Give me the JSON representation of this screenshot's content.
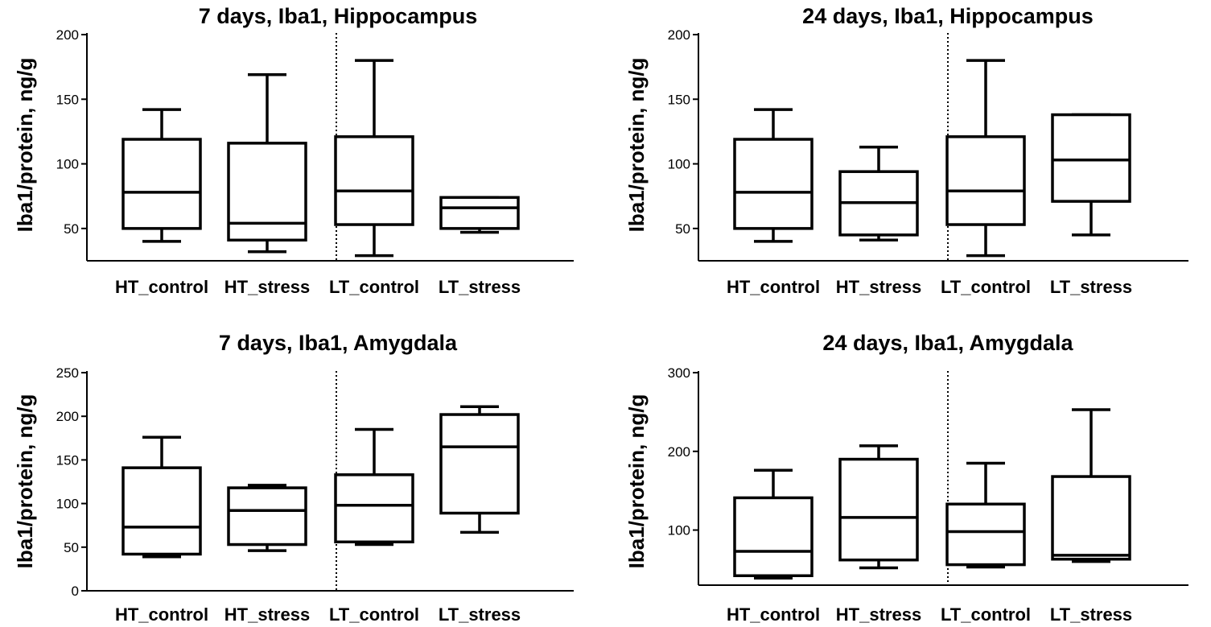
{
  "chart_data": [
    {
      "type": "box",
      "title": "7 days, Iba1, Hippocampus",
      "xlabel": "",
      "ylabel": "Iba1/protein, ng/g",
      "ylim": [
        25,
        200
      ],
      "yticks": [
        50,
        100,
        150,
        200
      ],
      "categories": [
        "HT_control",
        "HT_stress",
        "LT_control",
        "LT_stress"
      ],
      "divider_after": 2,
      "boxes": [
        {
          "min": 40,
          "q1": 50,
          "median": 78,
          "q3": 119,
          "max": 142
        },
        {
          "min": 32,
          "q1": 41,
          "median": 54,
          "q3": 116,
          "max": 169
        },
        {
          "min": 29,
          "q1": 53,
          "median": 79,
          "q3": 121,
          "max": 180
        },
        {
          "min": 47,
          "q1": 50,
          "median": 66,
          "q3": 74,
          "max": 74
        }
      ]
    },
    {
      "type": "box",
      "title": "24 days, Iba1, Hippocampus",
      "xlabel": "",
      "ylabel": "Iba1/protein, ng/g",
      "ylim": [
        25,
        200
      ],
      "yticks": [
        50,
        100,
        150,
        200
      ],
      "categories": [
        "HT_control",
        "HT_stress",
        "LT_control",
        "LT_stress"
      ],
      "divider_after": 2,
      "boxes": [
        {
          "min": 40,
          "q1": 50,
          "median": 78,
          "q3": 119,
          "max": 142
        },
        {
          "min": 41,
          "q1": 45,
          "median": 70,
          "q3": 94,
          "max": 113
        },
        {
          "min": 29,
          "q1": 53,
          "median": 79,
          "q3": 121,
          "max": 180
        },
        {
          "min": 45,
          "q1": 71,
          "median": 103,
          "q3": 138,
          "max": 138
        }
      ]
    },
    {
      "type": "box",
      "title": "7 days, Iba1, Amygdala",
      "xlabel": "",
      "ylabel": "Iba1/protein, ng/g",
      "ylim": [
        0,
        250
      ],
      "yticks": [
        0,
        50,
        100,
        150,
        200,
        250
      ],
      "categories": [
        "HT_control",
        "HT_stress",
        "LT_control",
        "LT_stress"
      ],
      "divider_after": 2,
      "boxes": [
        {
          "min": 39,
          "q1": 42,
          "median": 73,
          "q3": 141,
          "max": 176
        },
        {
          "min": 46,
          "q1": 53,
          "median": 92,
          "q3": 118,
          "max": 121
        },
        {
          "min": 53,
          "q1": 56,
          "median": 98,
          "q3": 133,
          "max": 185
        },
        {
          "min": 67,
          "q1": 89,
          "median": 165,
          "q3": 202,
          "max": 211
        }
      ]
    },
    {
      "type": "box",
      "title": "24 days, Iba1, Amygdala",
      "xlabel": "",
      "ylabel": "Iba1/protein, ng/g",
      "ylim": [
        30,
        300
      ],
      "yticks": [
        100,
        200,
        300
      ],
      "categories": [
        "HT_control",
        "HT_stress",
        "LT_control",
        "LT_stress"
      ],
      "divider_after": 2,
      "boxes": [
        {
          "min": 39,
          "q1": 42,
          "median": 73,
          "q3": 141,
          "max": 176
        },
        {
          "min": 52,
          "q1": 62,
          "median": 116,
          "q3": 190,
          "max": 207
        },
        {
          "min": 53,
          "q1": 56,
          "median": 98,
          "q3": 133,
          "max": 185
        },
        {
          "min": 60,
          "q1": 63,
          "median": 68,
          "q3": 168,
          "max": 253
        }
      ]
    }
  ]
}
